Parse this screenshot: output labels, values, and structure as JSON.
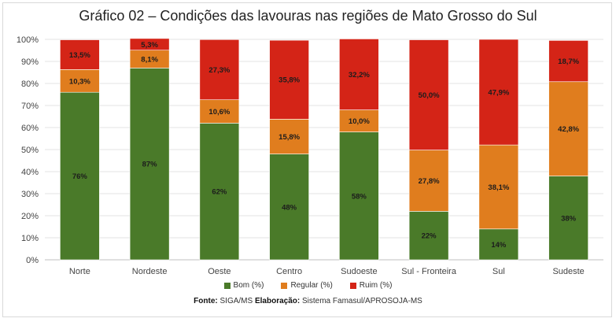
{
  "colors": {
    "bom": "#4a7a29",
    "regular": "#e07d1e",
    "ruim": "#d42417",
    "grid": "#e3e3e3"
  },
  "source": {
    "fonte_label": "Fonte:",
    "fonte_value": "SIGA/MS",
    "elaboracao_label": "Elaboração:",
    "elaboracao_value": "Sistema Famasul/APROSOJA-MS"
  },
  "chart_data": {
    "type": "bar",
    "stacked": true,
    "title": "Gráfico 02 – Condições das lavouras nas regiões de Mato Grosso do Sul",
    "xlabel": "",
    "ylabel": "",
    "ylim": [
      0,
      100
    ],
    "yticks": [
      "0%",
      "10%",
      "20%",
      "30%",
      "40%",
      "50%",
      "60%",
      "70%",
      "80%",
      "90%",
      "100%"
    ],
    "grid": true,
    "legend_position": "bottom",
    "categories": [
      "Norte",
      "Nordeste",
      "Oeste",
      "Centro",
      "Sudoeste",
      "Sul - Fronteira",
      "Sul",
      "Sudeste"
    ],
    "series": [
      {
        "name": "Bom (%)",
        "color": "#4a7a29",
        "values": [
          76,
          87,
          62,
          48,
          58,
          22,
          14,
          38
        ],
        "labels": [
          "76%",
          "87%",
          "62%",
          "48%",
          "58%",
          "22%",
          "14%",
          "38%"
        ]
      },
      {
        "name": "Regular (%)",
        "color": "#e07d1e",
        "values": [
          10.3,
          8.1,
          10.6,
          15.8,
          10.0,
          27.8,
          38.1,
          42.8
        ],
        "labels": [
          "10,3%",
          "8,1%",
          "10,6%",
          "15,8%",
          "10,0%",
          "27,8%",
          "38,1%",
          "42,8%"
        ]
      },
      {
        "name": "Ruim (%)",
        "color": "#d42417",
        "values": [
          13.5,
          5.3,
          27.3,
          35.8,
          32.2,
          50.0,
          47.9,
          18.7
        ],
        "labels": [
          "13,5%",
          "5,3%",
          "27,3%",
          "35,8%",
          "32,2%",
          "50,0%",
          "47,9%",
          "18,7%"
        ]
      }
    ]
  }
}
